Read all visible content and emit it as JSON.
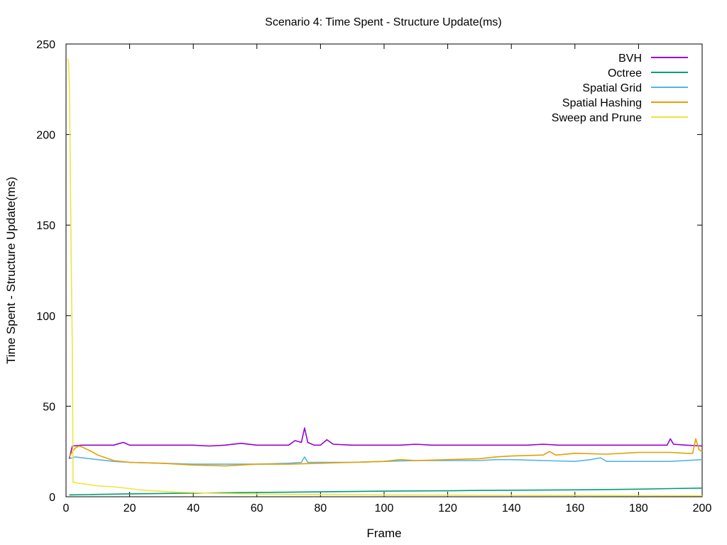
{
  "chart_data": {
    "type": "line",
    "title": "Scenario 4: Time Spent - Structure Update(ms)",
    "xlabel": "Frame",
    "ylabel": "Time Spent - Structure Update(ms)",
    "xlim": [
      0,
      200
    ],
    "ylim": [
      0,
      250
    ],
    "xticks": [
      0,
      20,
      40,
      60,
      80,
      100,
      120,
      140,
      160,
      180,
      200
    ],
    "yticks": [
      0,
      50,
      100,
      150,
      200,
      250
    ],
    "grid": false,
    "legend_position": "top-right",
    "series": [
      {
        "name": "BVH",
        "color": "#9400d3",
        "points": [
          [
            1,
            21
          ],
          [
            2,
            28
          ],
          [
            5,
            28.5
          ],
          [
            10,
            28.5
          ],
          [
            15,
            28.5
          ],
          [
            18,
            30
          ],
          [
            20,
            28.5
          ],
          [
            25,
            28.5
          ],
          [
            30,
            28.5
          ],
          [
            35,
            28.5
          ],
          [
            40,
            28.5
          ],
          [
            45,
            28
          ],
          [
            50,
            28.5
          ],
          [
            55,
            29.5
          ],
          [
            60,
            28.5
          ],
          [
            65,
            28.5
          ],
          [
            70,
            28.5
          ],
          [
            72,
            31
          ],
          [
            74,
            30
          ],
          [
            75,
            38
          ],
          [
            76,
            30
          ],
          [
            78,
            28.5
          ],
          [
            80,
            28.5
          ],
          [
            82,
            31.5
          ],
          [
            84,
            29
          ],
          [
            90,
            28.5
          ],
          [
            95,
            28.5
          ],
          [
            100,
            28.5
          ],
          [
            105,
            28.5
          ],
          [
            110,
            29
          ],
          [
            115,
            28.5
          ],
          [
            120,
            28.5
          ],
          [
            125,
            28.5
          ],
          [
            130,
            28.5
          ],
          [
            135,
            28.5
          ],
          [
            140,
            28.5
          ],
          [
            145,
            28.5
          ],
          [
            150,
            29
          ],
          [
            155,
            28.5
          ],
          [
            160,
            28.5
          ],
          [
            165,
            28.5
          ],
          [
            170,
            28.5
          ],
          [
            175,
            28.5
          ],
          [
            180,
            28.5
          ],
          [
            185,
            28.5
          ],
          [
            189,
            28.5
          ],
          [
            190,
            32
          ],
          [
            191,
            29
          ],
          [
            195,
            28.5
          ],
          [
            200,
            28
          ]
        ]
      },
      {
        "name": "Octree",
        "color": "#009e73",
        "points": [
          [
            1,
            1
          ],
          [
            10,
            1.3
          ],
          [
            20,
            1.6
          ],
          [
            30,
            1.8
          ],
          [
            40,
            2
          ],
          [
            50,
            2.2
          ],
          [
            60,
            2.4
          ],
          [
            70,
            2.5
          ],
          [
            80,
            2.7
          ],
          [
            90,
            2.9
          ],
          [
            100,
            3.1
          ],
          [
            110,
            3.2
          ],
          [
            120,
            3.3
          ],
          [
            130,
            3.5
          ],
          [
            140,
            3.6
          ],
          [
            150,
            3.7
          ],
          [
            160,
            3.8
          ],
          [
            170,
            4
          ],
          [
            180,
            4.2
          ],
          [
            190,
            4.5
          ],
          [
            200,
            4.8
          ]
        ]
      },
      {
        "name": "Spatial Grid",
        "color": "#56b4e9",
        "points": [
          [
            1,
            21
          ],
          [
            3,
            22
          ],
          [
            5,
            21.5
          ],
          [
            10,
            20.5
          ],
          [
            15,
            19.5
          ],
          [
            20,
            19
          ],
          [
            30,
            18.5
          ],
          [
            40,
            18
          ],
          [
            50,
            18
          ],
          [
            60,
            18
          ],
          [
            70,
            18.5
          ],
          [
            74,
            19
          ],
          [
            75,
            22
          ],
          [
            76,
            19
          ],
          [
            80,
            19
          ],
          [
            90,
            19
          ],
          [
            100,
            19.5
          ],
          [
            110,
            20
          ],
          [
            120,
            20
          ],
          [
            130,
            20
          ],
          [
            135,
            20.5
          ],
          [
            140,
            20.5
          ],
          [
            150,
            20
          ],
          [
            160,
            19.5
          ],
          [
            165,
            20.5
          ],
          [
            168,
            21.5
          ],
          [
            170,
            19.5
          ],
          [
            180,
            19.5
          ],
          [
            190,
            19.5
          ],
          [
            200,
            20.5
          ]
        ]
      },
      {
        "name": "Spatial Hashing",
        "color": "#e69f00",
        "points": [
          [
            1,
            22
          ],
          [
            2,
            25
          ],
          [
            3,
            27
          ],
          [
            4,
            28
          ],
          [
            5,
            27.5
          ],
          [
            8,
            25
          ],
          [
            10,
            23
          ],
          [
            15,
            20
          ],
          [
            20,
            19
          ],
          [
            30,
            18.5
          ],
          [
            40,
            17.5
          ],
          [
            50,
            17
          ],
          [
            60,
            18
          ],
          [
            70,
            18
          ],
          [
            80,
            18.5
          ],
          [
            90,
            19
          ],
          [
            100,
            19.5
          ],
          [
            105,
            20.5
          ],
          [
            110,
            20
          ],
          [
            120,
            20.5
          ],
          [
            130,
            21
          ],
          [
            135,
            22
          ],
          [
            140,
            22.5
          ],
          [
            150,
            23
          ],
          [
            152,
            25
          ],
          [
            154,
            23
          ],
          [
            160,
            24
          ],
          [
            170,
            23.5
          ],
          [
            180,
            24.5
          ],
          [
            190,
            24.5
          ],
          [
            195,
            24
          ],
          [
            197,
            24
          ],
          [
            198,
            32
          ],
          [
            199,
            26
          ],
          [
            200,
            25
          ]
        ]
      },
      {
        "name": "Sweep and Prune",
        "color": "#f0e442",
        "points": [
          [
            0.5,
            242
          ],
          [
            0.8,
            240
          ],
          [
            1.1,
            225
          ],
          [
            1.4,
            170
          ],
          [
            1.7,
            120
          ],
          [
            2,
            78
          ],
          [
            2.2,
            8
          ],
          [
            4,
            7.5
          ],
          [
            6,
            7
          ],
          [
            8,
            6.5
          ],
          [
            10,
            6
          ],
          [
            15,
            5.5
          ],
          [
            20,
            4.5
          ],
          [
            25,
            3.5
          ],
          [
            30,
            3
          ],
          [
            35,
            2.5
          ],
          [
            40,
            2.3
          ],
          [
            45,
            2
          ],
          [
            50,
            1.8
          ],
          [
            60,
            1.5
          ],
          [
            70,
            1.3
          ],
          [
            80,
            1.2
          ],
          [
            100,
            1
          ],
          [
            120,
            0.9
          ],
          [
            140,
            0.8
          ],
          [
            160,
            0.7
          ],
          [
            180,
            0.6
          ],
          [
            200,
            0.5
          ]
        ]
      }
    ]
  }
}
